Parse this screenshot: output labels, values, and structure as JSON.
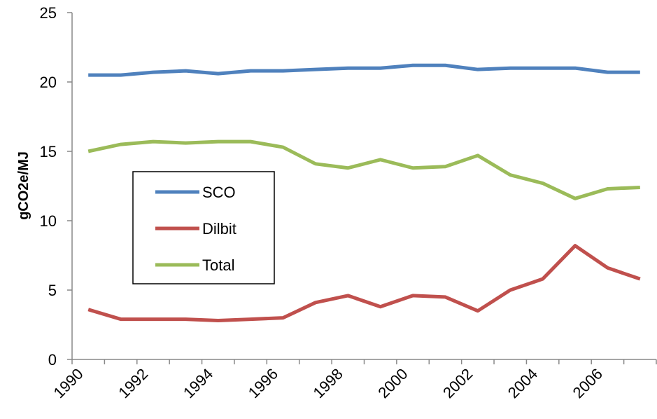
{
  "chart_data": {
    "type": "line",
    "y_label": "gCO2e/MJ",
    "categories": [
      "1990",
      null,
      "1992",
      null,
      "1994",
      null,
      "1996",
      null,
      "1998",
      null,
      "2000",
      null,
      "2002",
      null,
      "2004",
      null,
      "2006",
      null
    ],
    "series": [
      {
        "name": "SCO",
        "color": "#4f81bd",
        "values": [
          20.5,
          20.5,
          20.7,
          20.8,
          20.6,
          20.8,
          20.8,
          20.9,
          21.0,
          21.0,
          21.2,
          21.2,
          20.9,
          21.0,
          21.0,
          21.0,
          20.7,
          20.7
        ]
      },
      {
        "name": "Dilbit",
        "color": "#c0504d",
        "values": [
          3.6,
          2.9,
          2.9,
          2.9,
          2.8,
          2.9,
          3.0,
          4.1,
          4.6,
          3.8,
          4.6,
          4.5,
          3.5,
          5.0,
          5.8,
          8.2,
          6.6,
          5.8
        ]
      },
      {
        "name": "Total",
        "color": "#9bbb59",
        "values": [
          15.0,
          15.5,
          15.7,
          15.6,
          15.7,
          15.7,
          15.3,
          14.1,
          13.8,
          14.4,
          13.8,
          13.9,
          14.7,
          13.3,
          12.7,
          11.6,
          12.3,
          12.4
        ]
      }
    ],
    "ylim": [
      0,
      25
    ],
    "yticks": [
      0,
      5,
      10,
      15,
      20,
      25
    ],
    "grid": false
  }
}
